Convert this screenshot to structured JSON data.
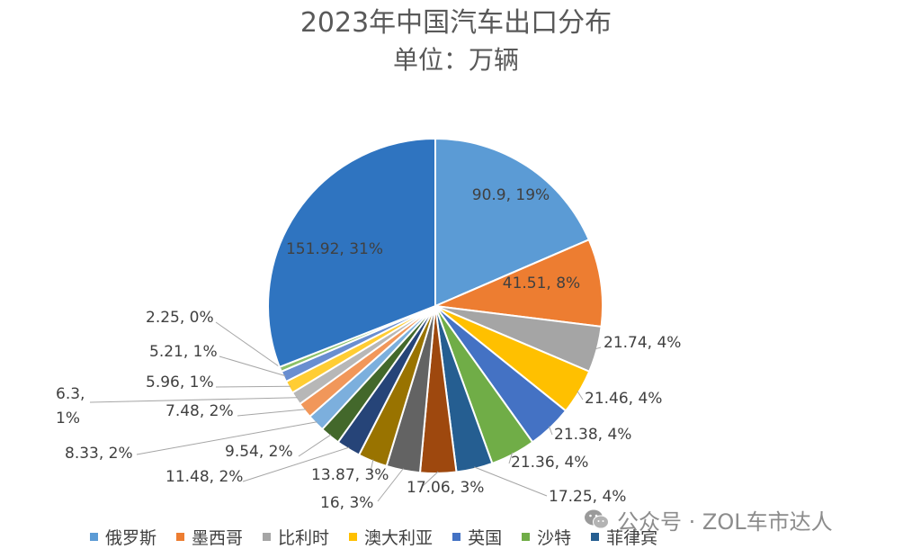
{
  "chart_data": {
    "type": "pie",
    "title": "2023年中国汽车出口分布",
    "subtitle": "单位：万辆",
    "slices": [
      {
        "name": "俄罗斯",
        "value": 90.9,
        "label": "90.9, 19%",
        "color": "#5B9BD5"
      },
      {
        "name": "墨西哥",
        "value": 41.51,
        "label": "41.51, 8%",
        "color": "#ED7D31"
      },
      {
        "name": "比利时",
        "value": 21.74,
        "label": "21.74, 4%",
        "color": "#A5A5A5"
      },
      {
        "name": "澳大利亚",
        "value": 21.46,
        "label": "21.46, 4%",
        "color": "#FFC000"
      },
      {
        "name": "英国",
        "value": 21.38,
        "label": "21.38, 4%",
        "color": "#4472C4"
      },
      {
        "name": "沙特",
        "value": 21.36,
        "label": "21.36, 4%",
        "color": "#70AD47"
      },
      {
        "name": "菲律宾",
        "value": 17.25,
        "label": "17.25, 4%",
        "color": "#255E91"
      },
      {
        "value": 17.06,
        "label": "17.06, 3%",
        "color": "#9E480E"
      },
      {
        "value": 16,
        "label": "16, 3%",
        "color": "#636363"
      },
      {
        "value": 13.87,
        "label": "13.87, 3%",
        "color": "#997300"
      },
      {
        "value": 11.48,
        "label": "11.48, 2%",
        "color": "#264478"
      },
      {
        "value": 9.54,
        "label": "9.54, 2%",
        "color": "#43682B"
      },
      {
        "value": 8.33,
        "label": "8.33, 2%",
        "color": "#7CAFDD"
      },
      {
        "value": 7.48,
        "label": "7.48, 2%",
        "color": "#F1975A"
      },
      {
        "value": 6.3,
        "label_lines": [
          "6.3,",
          "1%"
        ],
        "color": "#B7B7B7"
      },
      {
        "value": 5.96,
        "label": "5.96, 1%",
        "color": "#FFCD33"
      },
      {
        "value": 5.21,
        "label": "5.21, 1%",
        "color": "#698ED0"
      },
      {
        "value": 2.25,
        "label": "2.25, 0%",
        "color": "#8CC168"
      },
      {
        "value": 151.92,
        "label": "151.92, 31%",
        "color": "#2F74C0"
      }
    ],
    "legend": [
      "俄罗斯",
      "墨西哥",
      "比利时",
      "澳大利亚",
      "英国",
      "沙特",
      "菲律宾"
    ],
    "legend_position": "bottom"
  },
  "watermark": {
    "text": "公众号 · ZOL车市达人",
    "icon": "wechat-icon"
  }
}
